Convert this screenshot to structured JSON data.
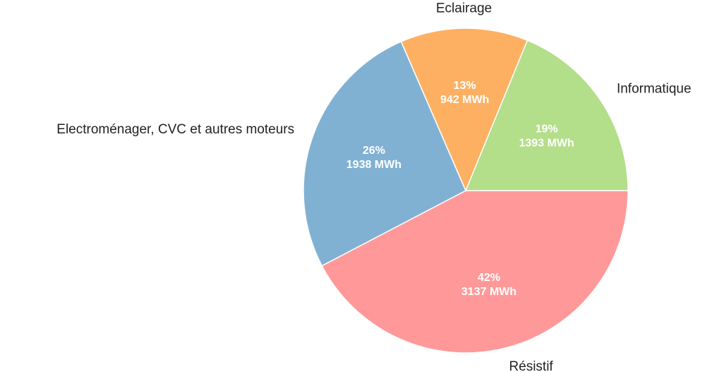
{
  "chart_data": {
    "type": "pie",
    "categories": [
      "Résistif",
      "Electroménager, CVC et autres moteurs",
      "Eclairage",
      "Informatique"
    ],
    "values": [
      3137,
      1938,
      942,
      1393
    ],
    "value_labels": [
      "3137 MWh",
      "1938 MWh",
      "942 MWh",
      "1393 MWh"
    ],
    "percents": [
      42,
      26,
      13,
      19
    ],
    "percent_labels": [
      "42%",
      "26%",
      "13%",
      "19%"
    ],
    "colors": [
      "#ff9999",
      "#80b1d3",
      "#fdb062",
      "#b3de8a"
    ]
  }
}
